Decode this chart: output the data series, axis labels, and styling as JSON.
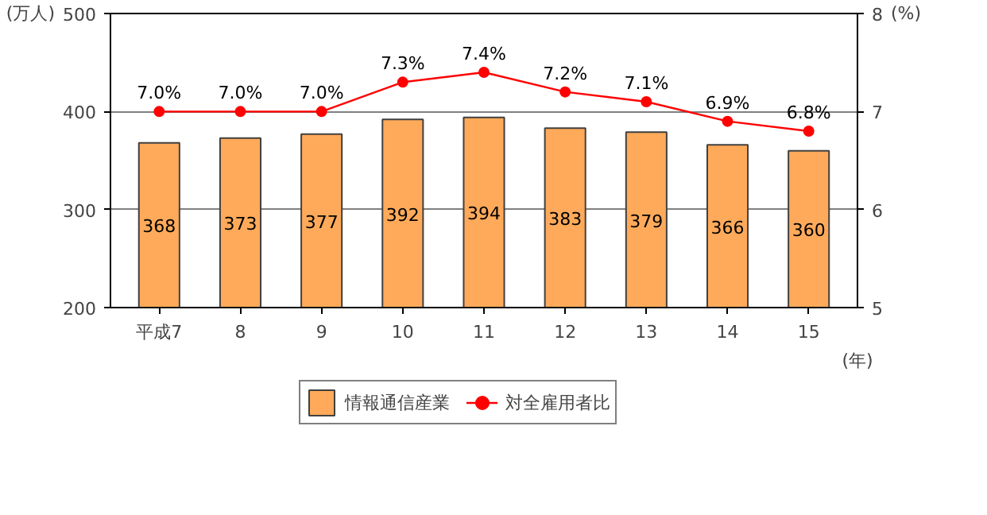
{
  "chart_data": {
    "type": "bar",
    "categories": [
      "平成7",
      "8",
      "9",
      "10",
      "11",
      "12",
      "13",
      "14",
      "15"
    ],
    "xlabel": "(年)",
    "ylabel": "(万人)",
    "y2label": "(%)",
    "ylim": [
      200,
      500
    ],
    "yticks": [
      200,
      300,
      400,
      500
    ],
    "y2lim": [
      5,
      8
    ],
    "y2ticks": [
      5,
      6,
      7,
      8
    ],
    "grid": "y",
    "legend": "bottom",
    "series": [
      {
        "name": "情報通信産業",
        "color": "#ffaa5a",
        "values": [
          368,
          373,
          377,
          392,
          394,
          383,
          379,
          366,
          360
        ],
        "value_labels": [
          "368",
          "373",
          "377",
          "392",
          "394",
          "383",
          "379",
          "366",
          "360"
        ]
      },
      {
        "name": "対全雇用者比",
        "type": "line",
        "axis": "y2",
        "color": "#ff0000",
        "marker": "circle",
        "values": [
          7.0,
          7.0,
          7.0,
          7.3,
          7.4,
          7.2,
          7.1,
          6.9,
          6.8
        ],
        "value_labels": [
          "7.0%",
          "7.0%",
          "7.0%",
          "7.3%",
          "7.4%",
          "7.2%",
          "7.1%",
          "6.9%",
          "6.8%"
        ]
      }
    ]
  }
}
